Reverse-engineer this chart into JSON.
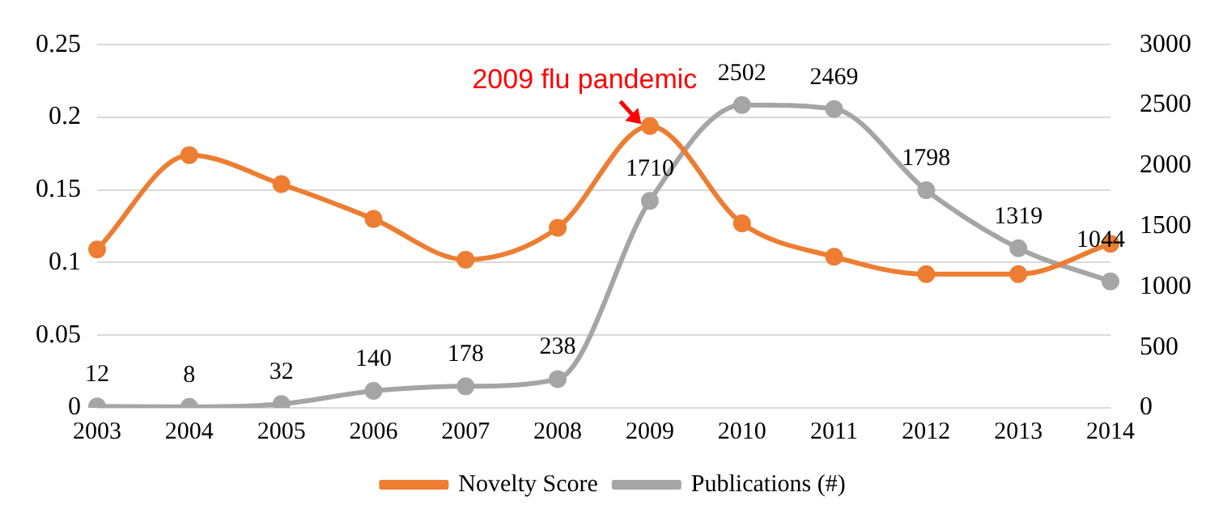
{
  "chart_data": {
    "type": "line",
    "categories": [
      "2003",
      "2004",
      "2005",
      "2006",
      "2007",
      "2008",
      "2009",
      "2010",
      "2011",
      "2012",
      "2013",
      "2014"
    ],
    "series": [
      {
        "name": "Novelty Score",
        "color": "#ed7d31",
        "values": [
          0.109,
          0.174,
          0.154,
          0.13,
          0.102,
          0.124,
          0.194,
          0.127,
          0.104,
          0.092,
          0.092,
          0.113
        ]
      },
      {
        "name": "Publications (#)",
        "color": "#a5a5a5",
        "axis": "y2",
        "values": [
          12,
          8,
          32,
          140,
          178,
          238,
          1710,
          2502,
          2469,
          1798,
          1319,
          1044
        ],
        "value_labels": [
          "12",
          "8",
          "32",
          "140",
          "178",
          "238",
          "1710",
          "2502",
          "2469",
          "1798",
          "1319",
          "1044"
        ]
      }
    ],
    "ylim": [
      0,
      0.25
    ],
    "yticks": [
      0,
      0.05,
      0.1,
      0.15,
      0.2,
      0.25
    ],
    "y2lim": [
      0,
      3000
    ],
    "y2ticks": [
      0,
      500,
      1000,
      1500,
      2000,
      2500,
      3000
    ],
    "grid": "y",
    "legend": "bottom",
    "marker": "circle",
    "line_style": "solid",
    "annotations": [
      "2009 flu pandemic"
    ]
  }
}
